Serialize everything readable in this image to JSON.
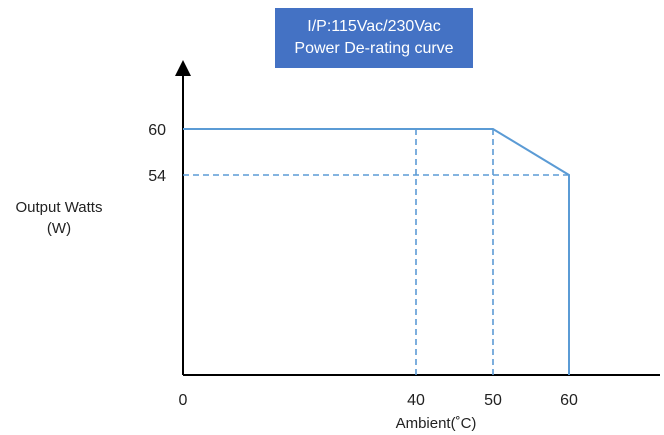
{
  "chart_data": {
    "type": "line",
    "title_lines": [
      "I/P:115Vac/230Vac",
      "Power De-rating curve"
    ],
    "ylabel_lines": [
      "Output Watts",
      "(W)"
    ],
    "xlabel": "Ambient(˚C)",
    "x_ticks": [
      0,
      40,
      50,
      60
    ],
    "y_ticks": [
      60,
      54
    ],
    "series": [
      {
        "x": [
          0,
          50,
          60,
          60
        ],
        "y": [
          60,
          60,
          54,
          0
        ]
      }
    ],
    "reference_lines": [
      {
        "x": [
          0,
          60
        ],
        "y": [
          54,
          54
        ]
      },
      {
        "x": [
          40,
          40
        ],
        "y": [
          0,
          60
        ]
      },
      {
        "x": [
          50,
          50
        ],
        "y": [
          0,
          60
        ]
      }
    ],
    "line_color": "#5B9BD5",
    "title_bg_color": "#4472C4"
  }
}
